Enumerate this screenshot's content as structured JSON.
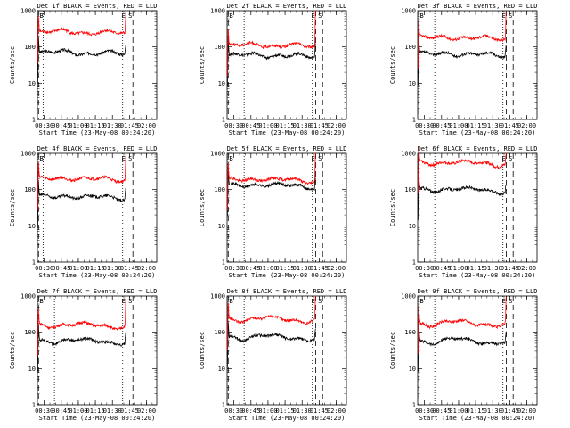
{
  "chart_data": [
    {
      "type": "line",
      "title": "Det 1f BLACK = Events, RED = LLD",
      "ylabel": "Counts/sec",
      "xlabel": "Start Time (23-May-08 00:24:20)",
      "yscale": "log",
      "ylim": [
        1,
        1000
      ],
      "xlim_minutes": [
        0,
        105
      ],
      "xtick_labels": [
        "00:30",
        "00:45",
        "01:00",
        "01:15",
        "01:30",
        "01:45",
        "02:00"
      ],
      "ytick_labels": [
        "1",
        "10",
        "100",
        "1000"
      ],
      "annotations": [
        "B",
        "E",
        "S"
      ],
      "series": [
        {
          "name": "Events",
          "color": "#000000",
          "level": 65,
          "spike": 110
        },
        {
          "name": "LLD",
          "color": "#ff0000",
          "level": 240,
          "spike": 900
        }
      ],
      "markers": {
        "dashed_minutes": [
          1,
          78,
          84
        ],
        "dotted_minutes": [
          5,
          75
        ]
      }
    },
    {
      "type": "line",
      "title": "Det 2f BLACK = Events, RED = LLD",
      "ylabel": "Counts/sec",
      "xlabel": "Start Time (23-May-08 00:24:20)",
      "yscale": "log",
      "ylim": [
        1,
        1000
      ],
      "xlim_minutes": [
        0,
        105
      ],
      "xtick_labels": [
        "00:30",
        "00:45",
        "01:00",
        "01:15",
        "01:30",
        "01:45",
        "02:00"
      ],
      "ytick_labels": [
        "1",
        "10",
        "100",
        "1000"
      ],
      "annotations": [
        "B",
        "E",
        "S"
      ],
      "series": [
        {
          "name": "Events",
          "color": "#000000",
          "level": 55,
          "spike": 120
        },
        {
          "name": "LLD",
          "color": "#ff0000",
          "level": 105,
          "spike": 950
        }
      ],
      "markers": {
        "dashed_minutes": [
          1,
          78,
          84
        ],
        "dotted_minutes": [
          15,
          75
        ]
      }
    },
    {
      "type": "line",
      "title": "Det 3f BLACK = Events, RED = LLD",
      "ylabel": "Counts/sec",
      "xlabel": "Start Time (23-May-08 00:24:20)",
      "yscale": "log",
      "ylim": [
        1,
        1000
      ],
      "xlim_minutes": [
        0,
        105
      ],
      "xtick_labels": [
        "00:30",
        "00:45",
        "01:00",
        "01:15",
        "01:30",
        "01:45",
        "02:00"
      ],
      "ytick_labels": [
        "1",
        "10",
        "100",
        "1000"
      ],
      "annotations": [
        "B",
        "E",
        "S"
      ],
      "series": [
        {
          "name": "Events",
          "color": "#000000",
          "level": 60,
          "spike": 110
        },
        {
          "name": "LLD",
          "color": "#ff0000",
          "level": 170,
          "spike": 900
        }
      ],
      "markers": {
        "dashed_minutes": [
          1,
          78,
          84
        ],
        "dotted_minutes": [
          15,
          75
        ]
      }
    },
    {
      "type": "line",
      "title": "Det 4f BLACK = Events, RED = LLD",
      "ylabel": "Counts/sec",
      "xlabel": "Start Time (23-May-08 00:24:20)",
      "yscale": "log",
      "ylim": [
        1,
        1000
      ],
      "xlim_minutes": [
        0,
        105
      ],
      "xtick_labels": [
        "00:30",
        "00:45",
        "01:00",
        "01:15",
        "01:30",
        "01:45",
        "02:00"
      ],
      "ytick_labels": [
        "1",
        "10",
        "100",
        "1000"
      ],
      "annotations": [
        "B",
        "E",
        "S"
      ],
      "series": [
        {
          "name": "Events",
          "color": "#000000",
          "level": 60,
          "spike": 110
        },
        {
          "name": "LLD",
          "color": "#ff0000",
          "level": 190,
          "spike": 900
        }
      ],
      "markers": {
        "dashed_minutes": [
          1,
          78,
          84
        ],
        "dotted_minutes": [
          5,
          75
        ]
      }
    },
    {
      "type": "line",
      "title": "Det 5f BLACK = Events, RED = LLD",
      "ylabel": "Counts/sec",
      "xlabel": "Start Time (23-May-08 00:24:20)",
      "yscale": "log",
      "ylim": [
        1,
        1000
      ],
      "xlim_minutes": [
        0,
        105
      ],
      "xtick_labels": [
        "00:30",
        "00:45",
        "01:00",
        "01:15",
        "01:30",
        "01:45",
        "02:00"
      ],
      "ytick_labels": [
        "1",
        "10",
        "100",
        "1000"
      ],
      "annotations": [
        "B",
        "E",
        "S"
      ],
      "series": [
        {
          "name": "Events",
          "color": "#000000",
          "level": 125,
          "spike": 200
        },
        {
          "name": "LLD",
          "color": "#ff0000",
          "level": 180,
          "spike": 950
        }
      ],
      "markers": {
        "dashed_minutes": [
          1,
          78,
          84
        ],
        "dotted_minutes": [
          15,
          75
        ]
      }
    },
    {
      "type": "line",
      "title": "Det 6f BLACK = Events, RED = LLD",
      "ylabel": "Counts/sec",
      "xlabel": "Start Time (23-May-08 00:24:20)",
      "yscale": "log",
      "ylim": [
        1,
        1000
      ],
      "xlim_minutes": [
        0,
        105
      ],
      "xtick_labels": [
        "00:30",
        "00:45",
        "01:00",
        "01:15",
        "01:30",
        "01:45",
        "02:00"
      ],
      "ytick_labels": [
        "1",
        "10",
        "100",
        "1000"
      ],
      "annotations": [
        "E",
        "S"
      ],
      "series": [
        {
          "name": "Events",
          "color": "#000000",
          "level": 95,
          "spike": 130
        },
        {
          "name": "LLD",
          "color": "#ff0000",
          "level": 520,
          "spike": 950
        }
      ],
      "markers": {
        "dashed_minutes": [
          78,
          84
        ],
        "dotted_minutes": [
          15,
          75
        ]
      }
    },
    {
      "type": "line",
      "title": "Det 7f BLACK = Events, RED = LLD",
      "ylabel": "Counts/sec",
      "xlabel": "Start Time (23-May-08 00:24:20)",
      "yscale": "log",
      "ylim": [
        1,
        1000
      ],
      "xlim_minutes": [
        0,
        105
      ],
      "xtick_labels": [
        "00:30",
        "00:45",
        "01:00",
        "01:15",
        "01:30",
        "01:45",
        "02:00"
      ],
      "ytick_labels": [
        "1",
        "10",
        "100",
        "1000"
      ],
      "annotations": [
        "B",
        "E",
        "S"
      ],
      "series": [
        {
          "name": "Events",
          "color": "#000000",
          "level": 55,
          "spike": 100
        },
        {
          "name": "LLD",
          "color": "#ff0000",
          "level": 150,
          "spike": 900
        }
      ],
      "markers": {
        "dashed_minutes": [
          1,
          78,
          84
        ],
        "dotted_minutes": [
          15,
          75
        ]
      }
    },
    {
      "type": "line",
      "title": "Det 8f BLACK = Events, RED = LLD",
      "ylabel": "Counts/sec",
      "xlabel": "Start Time (23-May-08 00:24:20)",
      "yscale": "log",
      "ylim": [
        1,
        1000
      ],
      "xlim_minutes": [
        0,
        105
      ],
      "xtick_labels": [
        "00:30",
        "00:45",
        "01:00",
        "01:15",
        "01:30",
        "01:45",
        "02:00"
      ],
      "ytick_labels": [
        "1",
        "10",
        "100",
        "1000"
      ],
      "annotations": [
        "B",
        "E",
        "S"
      ],
      "series": [
        {
          "name": "Events",
          "color": "#000000",
          "level": 70,
          "spike": 120
        },
        {
          "name": "LLD",
          "color": "#ff0000",
          "level": 220,
          "spike": 950
        }
      ],
      "markers": {
        "dashed_minutes": [
          1,
          78,
          84
        ],
        "dotted_minutes": [
          15,
          75
        ]
      }
    },
    {
      "type": "line",
      "title": "Det 9f BLACK = Events, RED = LLD",
      "ylabel": "Counts/sec",
      "xlabel": "Start Time (23-May-08 00:24:20)",
      "yscale": "log",
      "ylim": [
        1,
        1000
      ],
      "xlim_minutes": [
        0,
        105
      ],
      "xtick_labels": [
        "00:30",
        "00:45",
        "01:00",
        "01:15",
        "01:30",
        "01:45",
        "02:00"
      ],
      "ytick_labels": [
        "1",
        "10",
        "100",
        "1000"
      ],
      "annotations": [
        "B",
        "E",
        "S"
      ],
      "series": [
        {
          "name": "Events",
          "color": "#000000",
          "level": 55,
          "spike": 100
        },
        {
          "name": "LLD",
          "color": "#ff0000",
          "level": 170,
          "spike": 900
        }
      ],
      "markers": {
        "dashed_minutes": [
          1,
          78,
          84
        ],
        "dotted_minutes": [
          15,
          75
        ]
      }
    }
  ]
}
